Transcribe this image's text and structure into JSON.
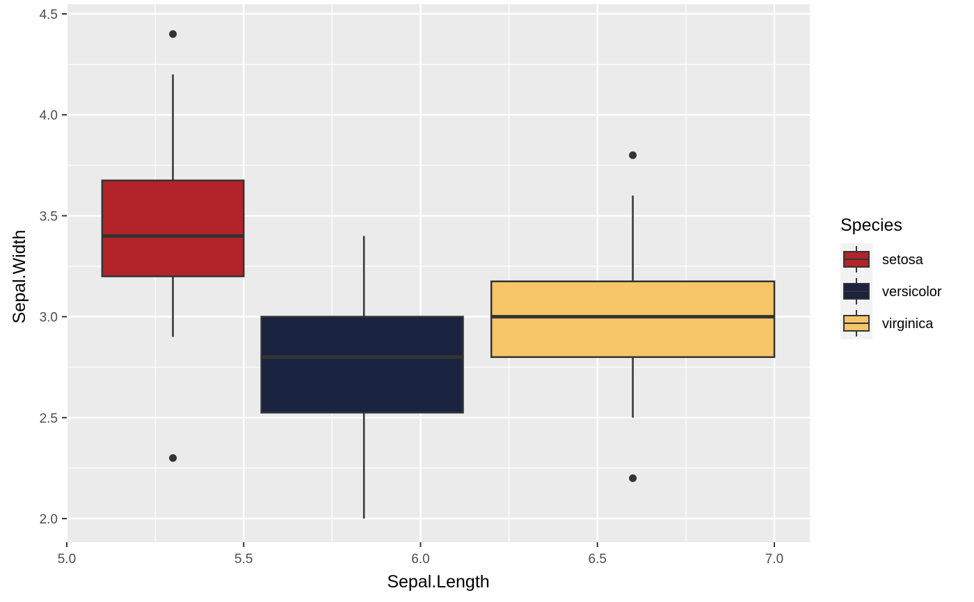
{
  "chart_data": {
    "type": "boxplot",
    "xlabel": "Sepal.Length",
    "ylabel": "Sepal.Width",
    "xlim": [
      5.0,
      7.1
    ],
    "ylim": [
      1.9,
      4.5
    ],
    "x_ticks": [
      "5.0",
      "5.5",
      "6.0",
      "6.5",
      "7.0"
    ],
    "y_ticks": [
      "2.0",
      "2.5",
      "3.0",
      "3.5",
      "4.0",
      "4.5"
    ],
    "grid": true,
    "legend_position": "right",
    "legend_title": "Species",
    "series": [
      {
        "name": "setosa",
        "color": "#B2242A",
        "x_min": 5.1,
        "x_max": 5.5,
        "x_center": 5.3,
        "q1": 3.2,
        "median": 3.4,
        "q3": 3.675,
        "whisker_low": 2.9,
        "whisker_high": 4.2,
        "outliers": [
          4.4,
          2.3
        ]
      },
      {
        "name": "versicolor",
        "color": "#1A2340",
        "x_min": 5.55,
        "x_max": 6.12,
        "x_center": 5.84,
        "q1": 2.525,
        "median": 2.8,
        "q3": 3.0,
        "whisker_low": 2.0,
        "whisker_high": 3.4,
        "outliers": []
      },
      {
        "name": "virginica",
        "color": "#F7C668",
        "x_min": 6.2,
        "x_max": 7.0,
        "x_center": 6.6,
        "q1": 2.8,
        "median": 3.0,
        "q3": 3.175,
        "whisker_low": 2.5,
        "whisker_high": 3.6,
        "outliers": [
          3.8,
          2.2
        ]
      }
    ]
  }
}
